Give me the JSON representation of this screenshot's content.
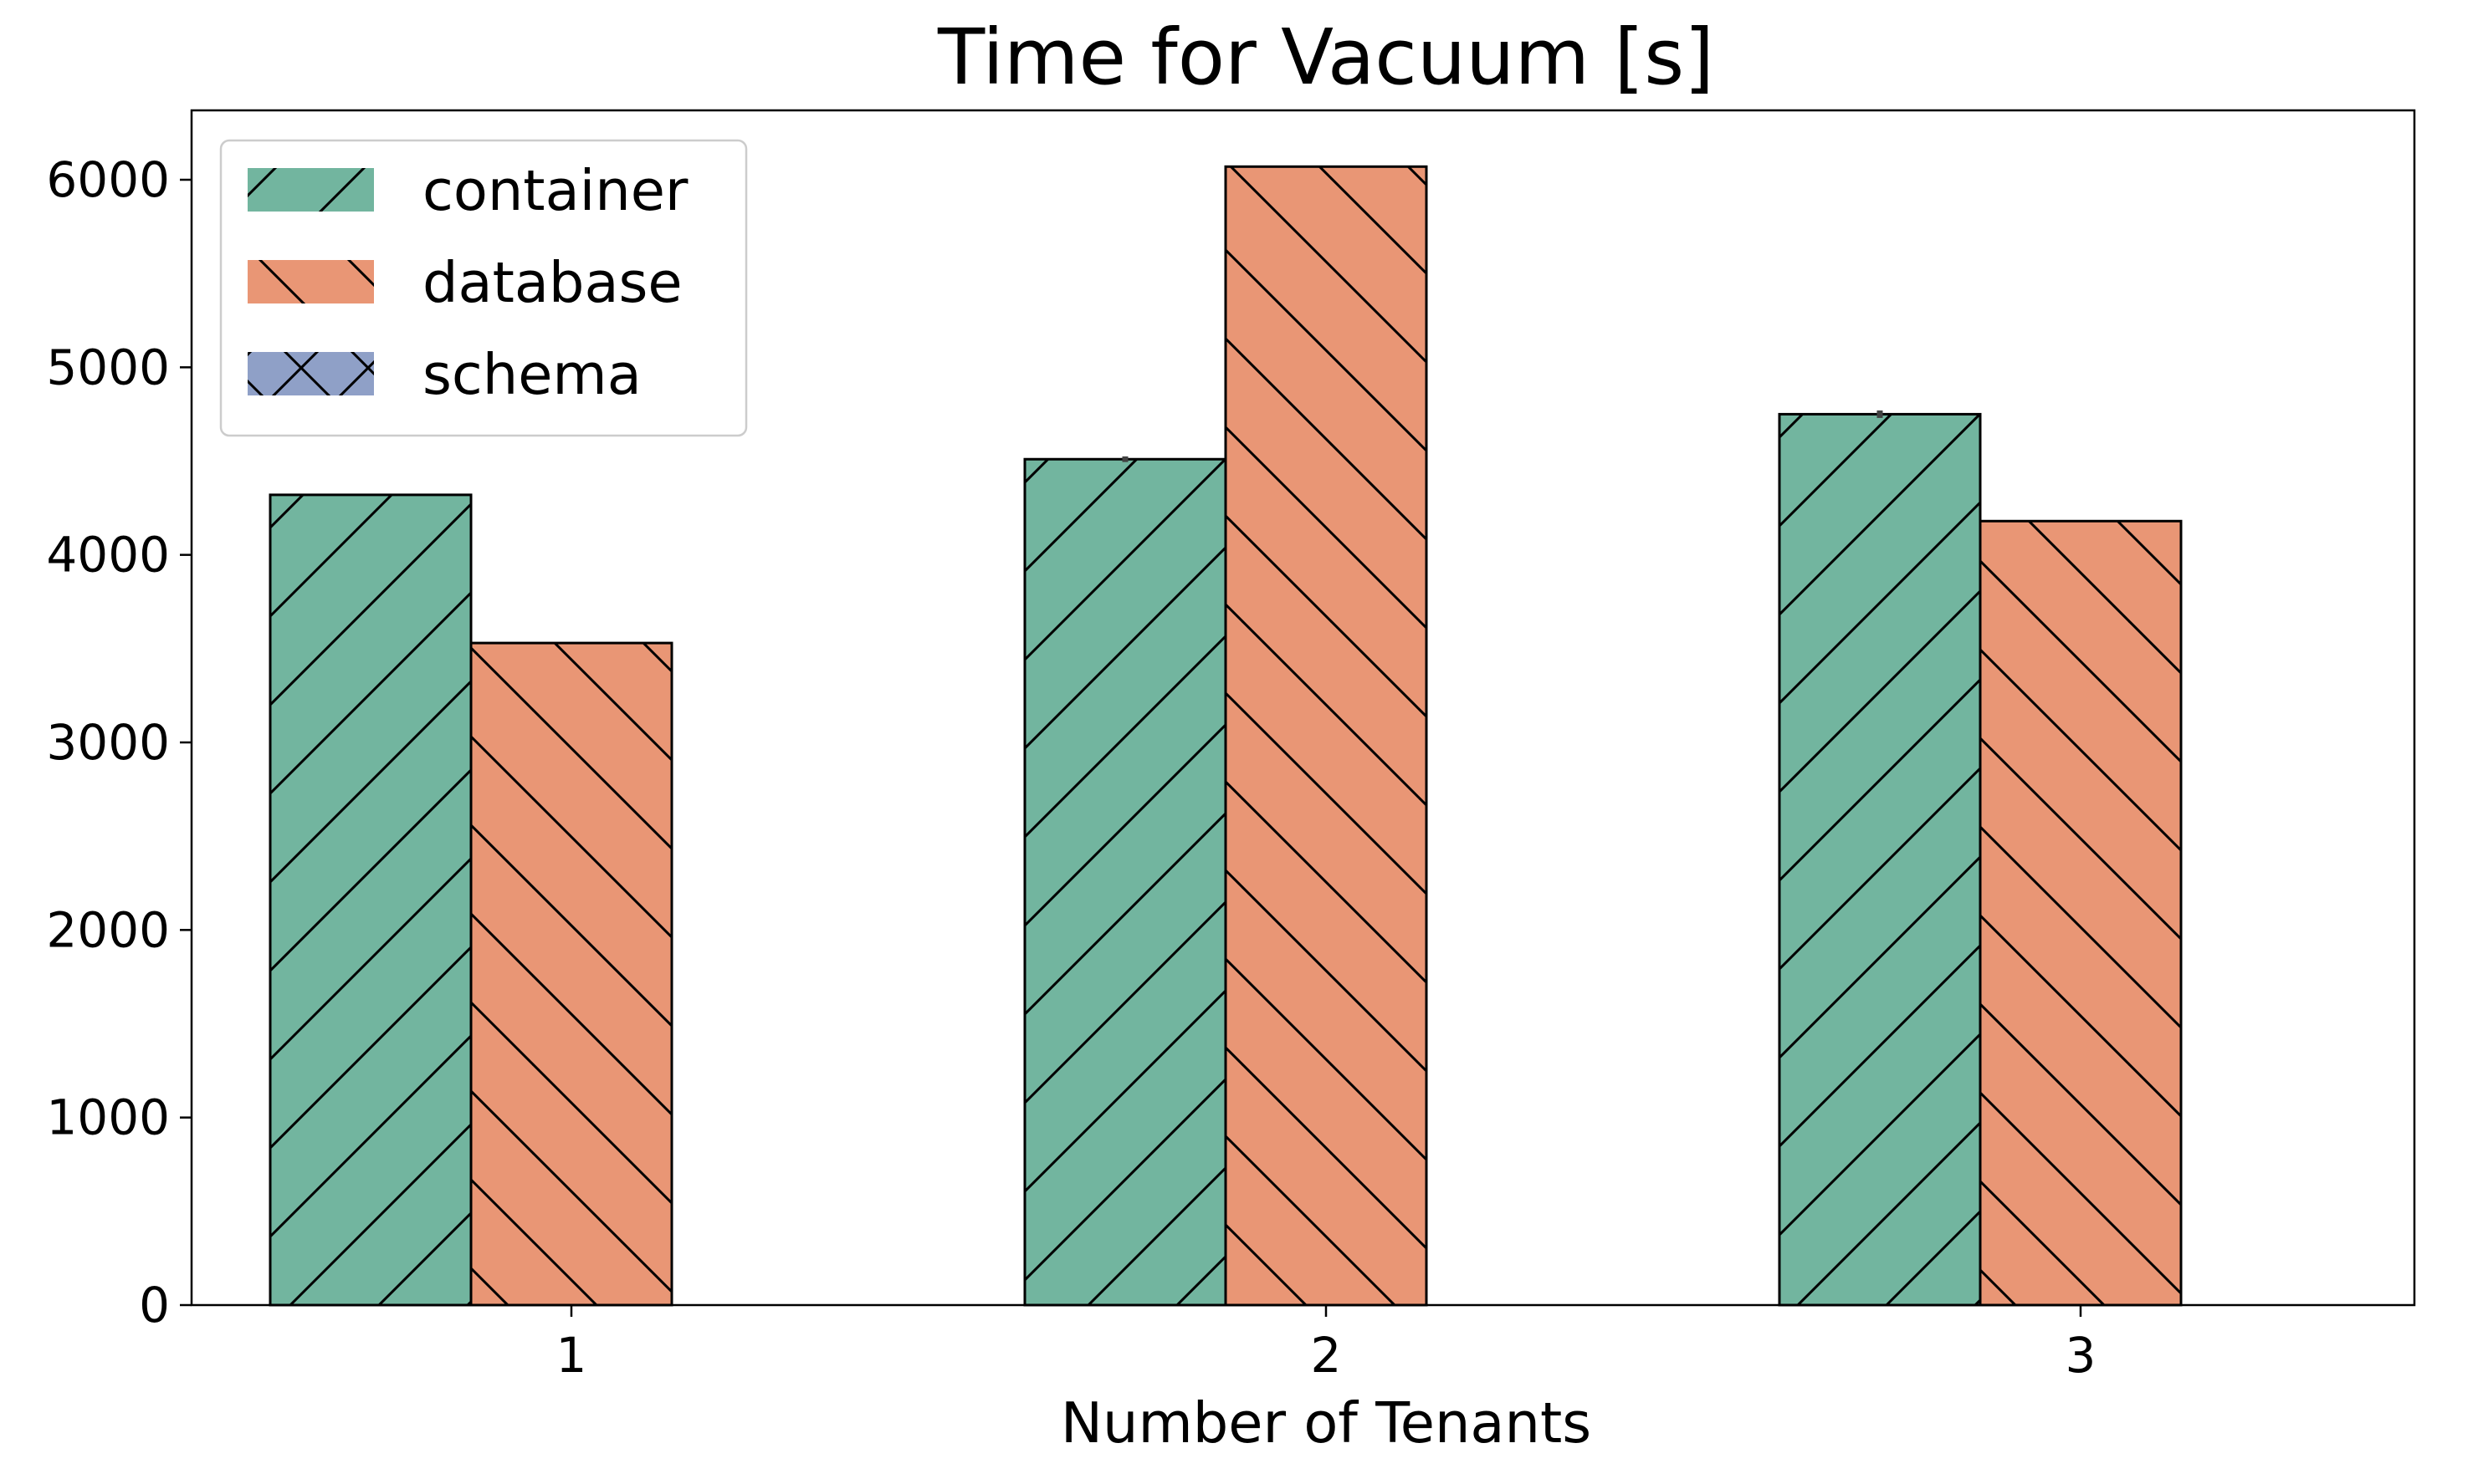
{
  "chart_data": {
    "type": "bar",
    "title": "Time for Vacuum [s]",
    "xlabel": "Number of Tenants",
    "ylabel": "",
    "categories": [
      "1",
      "2",
      "3"
    ],
    "ylim": [
      0,
      6370
    ],
    "yticks": [
      0,
      1000,
      2000,
      3000,
      4000,
      5000,
      6000
    ],
    "legend_position": "top-left",
    "grid": false,
    "series": [
      {
        "name": "container",
        "color": "#72b59f",
        "hatch": "/",
        "values": [
          4320,
          4510,
          4750
        ],
        "error": [
          0,
          30,
          40
        ]
      },
      {
        "name": "database",
        "color": "#e99675",
        "hatch": "\\",
        "values": [
          3530,
          6070,
          4180
        ],
        "error": [
          0,
          0,
          0
        ]
      },
      {
        "name": "schema",
        "color": "#8fa0c7",
        "hatch": "x",
        "values": [
          null,
          null,
          null
        ],
        "error": [
          0,
          0,
          0
        ]
      }
    ]
  }
}
